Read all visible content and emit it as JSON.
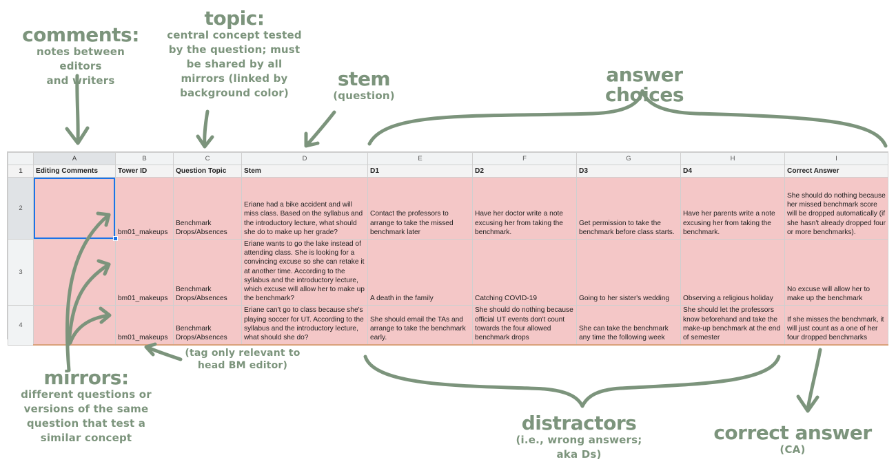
{
  "annotations": {
    "comments": {
      "title": "comments:",
      "line1": "notes between editors",
      "line2": "and writers"
    },
    "topic": {
      "title": "topic:",
      "line1": "central concept tested",
      "line2": "by the question; must",
      "line3": "be shared by all",
      "line4": "mirrors (linked by",
      "line5": "background color)"
    },
    "stem": {
      "title": "stem",
      "sub": "(question)"
    },
    "answer_choices": {
      "title": "answer choices"
    },
    "tag": {
      "line1": "(tag only relevant to",
      "line2": "head BM editor)"
    },
    "mirrors": {
      "title": "mirrors:",
      "line1": "different questions or",
      "line2": "versions of the same",
      "line3": "question that test a",
      "line4": "similar concept"
    },
    "distractors": {
      "title": "distractors",
      "line1": "(i.e., wrong answers;",
      "line2": "aka Ds)"
    },
    "correct_answer": {
      "title": "correct answer",
      "sub": "(CA)"
    },
    "color": "#7c947c"
  },
  "sheet": {
    "col_letters": [
      "A",
      "B",
      "C",
      "D",
      "E",
      "F",
      "G",
      "H",
      "I"
    ],
    "row_numbers": [
      "1",
      "2",
      "3",
      "4"
    ],
    "headers": [
      "Editing Comments",
      "Tower ID",
      "Question Topic",
      "Stem",
      "D1",
      "D2",
      "D3",
      "D4",
      "Correct Answer"
    ],
    "rows": [
      {
        "comment": "",
        "tower_id": "bm01_makeups",
        "topic": "Benchmark Drops/Absences",
        "stem": "Eriane had a bike accident and will miss class. Based on the syllabus and the introductory lecture, what should she do to make up her grade?",
        "d1": "Contact the professors to arrange to take the missed benchmark later",
        "d2": "Have her doctor write a note excusing her from taking the benchmark.",
        "d3": "Get permission to take the benchmark before class starts.",
        "d4": "Have her parents write a note excusing her from taking the benchmark.",
        "correct": "She should do nothing because her missed benchmark score will be dropped automatically (if she hasn't already dropped four or more benchmarks)."
      },
      {
        "comment": "",
        "tower_id": "bm01_makeups",
        "topic": "Benchmark Drops/Absences",
        "stem": "Eriane wants to go the lake instead of attending class. She is looking for a convincing excuse so she can retake it at another time. According to the syllabus and the introductory lecture, which excuse will allow her to make up the benchmark?",
        "d1": "A death in the family",
        "d2": "Catching COVID-19",
        "d3": "Going to her sister's wedding",
        "d4": "Observing a religious holiday",
        "correct": "No excuse will allow her to make up the benchmark"
      },
      {
        "comment": "",
        "tower_id": "bm01_makeups",
        "topic": "Benchmark Drops/Absences",
        "stem": "Eriane can't go to class because she's playing soccer for UT. According to the syllabus and the introductory lecture, what should she do?",
        "d1": "She should email the TAs and arrange to take the benchmark early.",
        "d2": "She should do nothing because official UT events don't count towards the four allowed benchmark drops",
        "d3": "She can take the benchmark any time the following week",
        "d4": "She should let the professors know beforehand and take the make-up benchmark at the end of semester",
        "correct": "If she misses the benchmark, it will just count as a one of her four dropped benchmarks"
      }
    ],
    "cell_color": "#f4c7c7",
    "selection_color": "#1a73e8"
  }
}
